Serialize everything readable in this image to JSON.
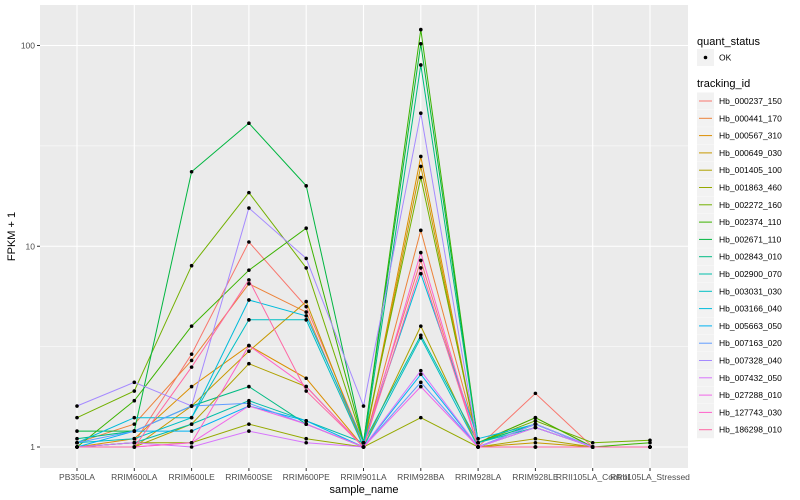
{
  "chart_data": {
    "type": "line",
    "xlabel": "sample_name",
    "ylabel": "FPKM + 1",
    "y_scale": "log10",
    "ylim": [
      0.95,
      130
    ],
    "y_ticks": [
      {
        "value": 1,
        "label": "1"
      },
      {
        "value": 10,
        "label": "10"
      },
      {
        "value": 100,
        "label": "100"
      }
    ],
    "categories": [
      "PB350LA",
      "RRIM600LA",
      "RRIM600LE",
      "RRIM600SE",
      "RRIM600PE",
      "RRIM901LA",
      "RRIM928BA",
      "RRIM928LA",
      "RRIM928LE",
      "RRII105LA_Control",
      "RRII105LA_Stressed"
    ],
    "grid": true,
    "background": "#ebebeb",
    "point_legend": {
      "title": "quant_status",
      "entries": [
        "OK"
      ]
    },
    "legend_title": "tracking_id",
    "legend_position": "right",
    "series": [
      {
        "name": "Hb_000237_150",
        "color": "#F8766D",
        "values": [
          1.0,
          1.05,
          2.9,
          10.5,
          5.0,
          1.05,
          8.5,
          1.0,
          1.85,
          1.0,
          1.0
        ]
      },
      {
        "name": "Hb_000441_170",
        "color": "#EC8239",
        "values": [
          1.05,
          1.3,
          2.7,
          6.5,
          4.7,
          1.0,
          12.0,
          1.05,
          1.4,
          1.0,
          1.0
        ]
      },
      {
        "name": "Hb_000567_310",
        "color": "#DB8E00",
        "values": [
          1.0,
          1.1,
          2.0,
          3.2,
          2.2,
          1.0,
          28.0,
          1.0,
          1.25,
          1.0,
          1.0
        ]
      },
      {
        "name": "Hb_000649_030",
        "color": "#C79800",
        "values": [
          1.0,
          1.0,
          1.6,
          3.0,
          5.3,
          1.0,
          25.0,
          1.0,
          1.05,
          1.0,
          1.0
        ]
      },
      {
        "name": "Hb_001405_100",
        "color": "#AFA100",
        "values": [
          1.0,
          1.0,
          1.3,
          2.6,
          2.0,
          1.0,
          4.0,
          1.0,
          1.1,
          1.0,
          1.0
        ]
      },
      {
        "name": "Hb_001863_460",
        "color": "#96A900",
        "values": [
          1.0,
          1.05,
          1.05,
          1.3,
          1.1,
          1.0,
          1.4,
          1.0,
          1.0,
          1.0,
          1.0
        ]
      },
      {
        "name": "Hb_002272_160",
        "color": "#72B000",
        "values": [
          1.4,
          1.9,
          8.0,
          18.5,
          7.8,
          1.05,
          22.0,
          1.05,
          1.35,
          1.05,
          1.08
        ]
      },
      {
        "name": "Hb_002374_110",
        "color": "#3BB300",
        "values": [
          1.0,
          1.7,
          4.0,
          7.6,
          12.3,
          1.05,
          120.0,
          1.05,
          1.4,
          1.0,
          1.05
        ]
      },
      {
        "name": "Hb_002671_110",
        "color": "#00B640",
        "values": [
          1.2,
          1.2,
          23.5,
          41.0,
          20.0,
          1.05,
          102.0,
          1.05,
          1.3,
          1.0,
          1.0
        ]
      },
      {
        "name": "Hb_002843_010",
        "color": "#00BB83",
        "values": [
          1.1,
          1.2,
          1.6,
          2.0,
          1.3,
          1.0,
          80.0,
          1.05,
          1.3,
          1.0,
          1.0
        ]
      },
      {
        "name": "Hb_002900_070",
        "color": "#00BDA9",
        "values": [
          1.0,
          1.05,
          1.3,
          1.7,
          1.35,
          1.05,
          3.6,
          1.05,
          1.25,
          1.0,
          1.0
        ]
      },
      {
        "name": "Hb_003031_030",
        "color": "#00BFC4",
        "values": [
          1.05,
          1.1,
          1.4,
          4.3,
          4.3,
          1.0,
          3.5,
          1.0,
          1.3,
          1.0,
          1.0
        ]
      },
      {
        "name": "Hb_003166_040",
        "color": "#00BBDB",
        "values": [
          1.05,
          1.4,
          1.4,
          5.4,
          4.5,
          1.05,
          7.3,
          1.1,
          1.3,
          1.0,
          1.0
        ]
      },
      {
        "name": "Hb_005663_050",
        "color": "#00B2F3",
        "values": [
          1.0,
          1.2,
          1.2,
          1.6,
          1.35,
          1.0,
          2.3,
          1.0,
          1.3,
          1.0,
          1.0
        ]
      },
      {
        "name": "Hb_007163_020",
        "color": "#619CFF",
        "values": [
          1.05,
          1.2,
          1.6,
          1.65,
          1.3,
          1.0,
          2.1,
          1.0,
          1.25,
          1.0,
          1.0
        ]
      },
      {
        "name": "Hb_007328_040",
        "color": "#A58AFF",
        "values": [
          1.6,
          2.1,
          1.6,
          15.5,
          8.7,
          1.6,
          46.0,
          1.0,
          1.3,
          1.0,
          1.0
        ]
      },
      {
        "name": "Hb_007432_050",
        "color": "#D774FC",
        "values": [
          1.0,
          1.05,
          1.0,
          1.2,
          1.05,
          1.0,
          2.4,
          1.0,
          1.25,
          1.0,
          1.0
        ]
      },
      {
        "name": "Hb_027288_010",
        "color": "#F166E9",
        "values": [
          1.0,
          1.0,
          1.05,
          1.6,
          1.3,
          1.0,
          2.0,
          1.0,
          1.0,
          1.0,
          1.0
        ]
      },
      {
        "name": "Hb_127743_030",
        "color": "#FF61C9",
        "values": [
          1.0,
          1.0,
          1.05,
          3.2,
          2.0,
          1.0,
          9.3,
          1.0,
          1.0,
          1.0,
          1.0
        ]
      },
      {
        "name": "Hb_186298_010",
        "color": "#FF67A4",
        "values": [
          1.0,
          1.0,
          2.5,
          6.8,
          1.9,
          1.0,
          7.8,
          1.0,
          1.0,
          1.0,
          1.0
        ]
      }
    ]
  }
}
